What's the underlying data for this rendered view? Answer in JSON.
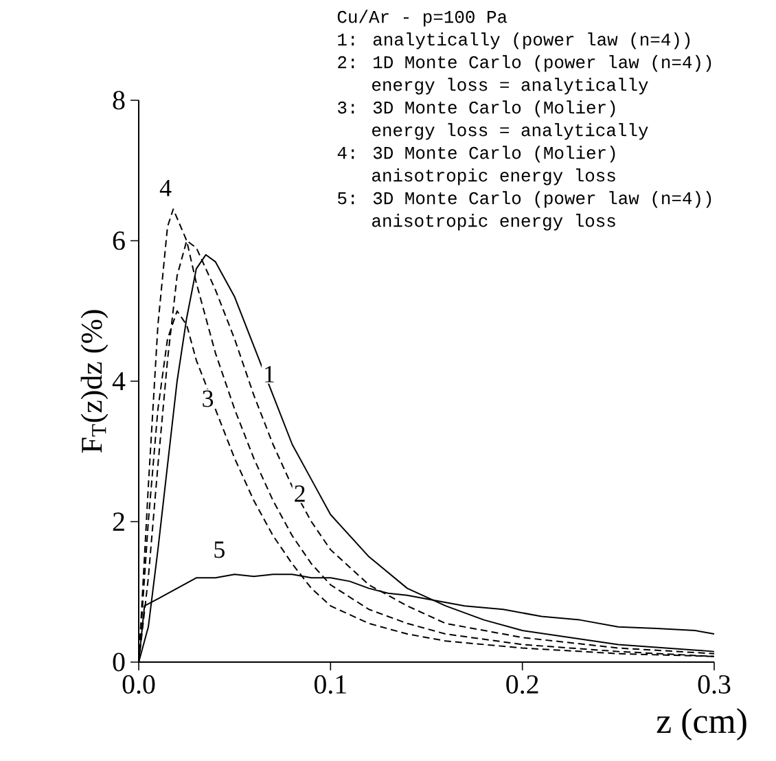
{
  "chart_data": {
    "type": "line",
    "title": "Cu/Ar - p=100 Pa",
    "annotations": [
      "1: analytically (power law (n=4))",
      "2: 1D Monte Carlo (power law (n=4))",
      "energy loss = analytically",
      "3: 3D Monte Carlo (Molier)",
      "energy loss = analytically",
      "4: 3D Monte Carlo (Molier)",
      "anisotropic energy loss",
      "5: 3D Monte Carlo (power law (n=4))",
      "anisotropic energy loss"
    ],
    "xlabel": "z (cm)",
    "ylabel": "F$_{T}$(z)dz (%)",
    "xlim": [
      0,
      0.3
    ],
    "ylim": [
      0,
      8
    ],
    "xticks": [
      {
        "value": 0,
        "label": "0.0"
      },
      0.1,
      0.2,
      0.3
    ],
    "yticks": [
      0,
      2,
      4,
      6,
      8
    ],
    "series": [
      {
        "name": "1",
        "color": "#000000",
        "line_style": "solid",
        "x": [
          0,
          0.005,
          0.01,
          0.015,
          0.02,
          0.025,
          0.03,
          0.035,
          0.04,
          0.05,
          0.06,
          0.07,
          0.08,
          0.09,
          0.1,
          0.12,
          0.14,
          0.16,
          0.18,
          0.2,
          0.25,
          0.3
        ],
        "values": [
          0,
          0.5,
          1.6,
          2.8,
          4.0,
          4.9,
          5.6,
          5.8,
          5.7,
          5.2,
          4.5,
          3.8,
          3.1,
          2.6,
          2.1,
          1.5,
          1.05,
          0.8,
          0.6,
          0.45,
          0.25,
          0.15
        ]
      },
      {
        "name": "2",
        "color": "#000000",
        "line_style": "dashed",
        "x": [
          0,
          0.005,
          0.01,
          0.015,
          0.02,
          0.025,
          0.03,
          0.04,
          0.05,
          0.06,
          0.07,
          0.08,
          0.09,
          0.1,
          0.12,
          0.14,
          0.16,
          0.2,
          0.25,
          0.3
        ],
        "values": [
          0,
          1.2,
          2.8,
          4.3,
          5.5,
          6.0,
          5.9,
          5.3,
          4.6,
          3.8,
          3.1,
          2.5,
          2.0,
          1.6,
          1.1,
          0.8,
          0.55,
          0.35,
          0.2,
          0.12
        ]
      },
      {
        "name": "3",
        "color": "#000000",
        "line_style": "dashed",
        "x": [
          0,
          0.005,
          0.01,
          0.015,
          0.02,
          0.025,
          0.03,
          0.04,
          0.05,
          0.06,
          0.07,
          0.08,
          0.09,
          0.1,
          0.12,
          0.14,
          0.16,
          0.2,
          0.25,
          0.3
        ],
        "values": [
          0,
          2.0,
          3.6,
          4.6,
          5.0,
          4.8,
          4.3,
          3.6,
          2.9,
          2.3,
          1.8,
          1.4,
          1.05,
          0.8,
          0.55,
          0.4,
          0.3,
          0.2,
          0.12,
          0.08
        ]
      },
      {
        "name": "4",
        "color": "#000000",
        "line_style": "dashed",
        "x": [
          0,
          0.005,
          0.01,
          0.015,
          0.018,
          0.025,
          0.03,
          0.04,
          0.05,
          0.06,
          0.07,
          0.08,
          0.09,
          0.1,
          0.12,
          0.14,
          0.16,
          0.2,
          0.25,
          0.3
        ],
        "values": [
          0,
          2.5,
          4.8,
          6.2,
          6.45,
          6.0,
          5.4,
          4.4,
          3.6,
          2.9,
          2.3,
          1.8,
          1.4,
          1.1,
          0.75,
          0.55,
          0.4,
          0.25,
          0.15,
          0.08
        ]
      },
      {
        "name": "5",
        "color": "#000000",
        "line_style": "solid",
        "x": [
          0,
          0.003,
          0.01,
          0.02,
          0.03,
          0.04,
          0.05,
          0.06,
          0.07,
          0.08,
          0.09,
          0.1,
          0.11,
          0.12,
          0.13,
          0.14,
          0.15,
          0.17,
          0.19,
          0.21,
          0.23,
          0.25,
          0.27,
          0.29,
          0.3
        ],
        "values": [
          0,
          0.8,
          0.9,
          1.05,
          1.2,
          1.2,
          1.25,
          1.22,
          1.25,
          1.25,
          1.2,
          1.2,
          1.15,
          1.05,
          0.98,
          0.95,
          0.9,
          0.8,
          0.75,
          0.65,
          0.6,
          0.5,
          0.48,
          0.45,
          0.4
        ]
      }
    ]
  }
}
